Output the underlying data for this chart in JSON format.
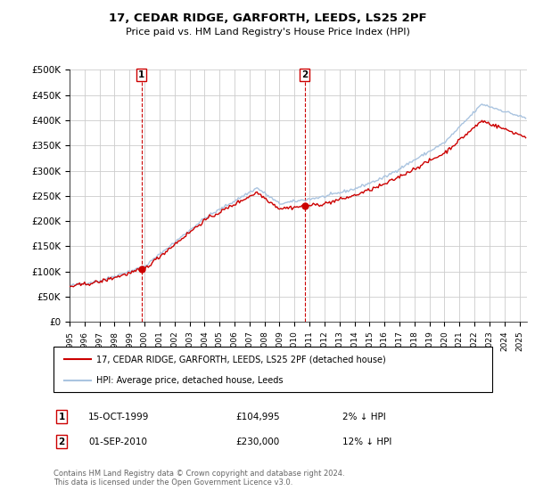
{
  "title": "17, CEDAR RIDGE, GARFORTH, LEEDS, LS25 2PF",
  "subtitle": "Price paid vs. HM Land Registry's House Price Index (HPI)",
  "ylim": [
    0,
    500000
  ],
  "xlim_start": 1995.0,
  "xlim_end": 2025.5,
  "sale1_x": 1999.79,
  "sale1_y": 104995,
  "sale1_label": "1",
  "sale1_date": "15-OCT-1999",
  "sale1_price": "£104,995",
  "sale1_hpi": "2% ↓ HPI",
  "sale2_x": 2010.67,
  "sale2_y": 230000,
  "sale2_label": "2",
  "sale2_date": "01-SEP-2010",
  "sale2_price": "£230,000",
  "sale2_hpi": "12% ↓ HPI",
  "legend_line1": "17, CEDAR RIDGE, GARFORTH, LEEDS, LS25 2PF (detached house)",
  "legend_line2": "HPI: Average price, detached house, Leeds",
  "footer": "Contains HM Land Registry data © Crown copyright and database right 2024.\nThis data is licensed under the Open Government Licence v3.0.",
  "line_color_red": "#cc0000",
  "line_color_blue": "#aac4e0",
  "marker_box_color": "#cc0000",
  "background_color": "#ffffff",
  "grid_color": "#cccccc"
}
